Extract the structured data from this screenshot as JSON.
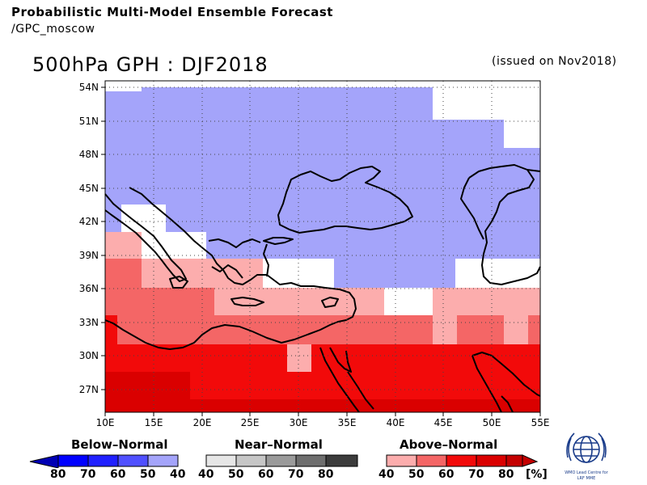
{
  "header": {
    "title": "Probabilistic Multi-Model Ensemble Forecast",
    "subtitle": "/GPC_moscow",
    "map_title": "500hPa GPH : DJF2018",
    "issued": "(issued on Nov2018)"
  },
  "map": {
    "lat_labels": [
      "54N",
      "51N",
      "48N",
      "45N",
      "42N",
      "39N",
      "36N",
      "33N",
      "30N",
      "27N"
    ],
    "lon_labels": [
      "10E",
      "15E",
      "20E",
      "25E",
      "30E",
      "35E",
      "40E",
      "45E",
      "50E",
      "55E"
    ],
    "lon_range": [
      10,
      55
    ],
    "lat_range": [
      25,
      55
    ],
    "colors": {
      "below": "#a4a4fa",
      "above_40": "#fcadad",
      "above_50": "#f46666",
      "above_60": "#f20a0a",
      "above_70": "#da0000",
      "above_80": "#c40000",
      "coast": "#000000"
    }
  },
  "legend": {
    "below": {
      "title": "Below–Normal",
      "labels": [
        "80",
        "70",
        "60",
        "50",
        "40"
      ],
      "colors": [
        "#0000b4",
        "#0000ff",
        "#4c4cff",
        "#7878ff",
        "#a4a4fa"
      ]
    },
    "near": {
      "title": "Near–Normal",
      "labels": [
        "40",
        "50",
        "60",
        "70",
        "80"
      ],
      "colors": [
        "#e6e6e6",
        "#c6c6c6",
        "#9a9a9a",
        "#6e6e6e",
        "#3c3c3c"
      ]
    },
    "above": {
      "title": "Above–Normal",
      "labels": [
        "40",
        "50",
        "60",
        "70",
        "80"
      ],
      "unit": "[%]",
      "colors": [
        "#fcadad",
        "#f46666",
        "#f20a0a",
        "#da0000",
        "#c40000"
      ]
    }
  },
  "logo": {
    "text": "WMO Lead Centre for LRF MME"
  }
}
